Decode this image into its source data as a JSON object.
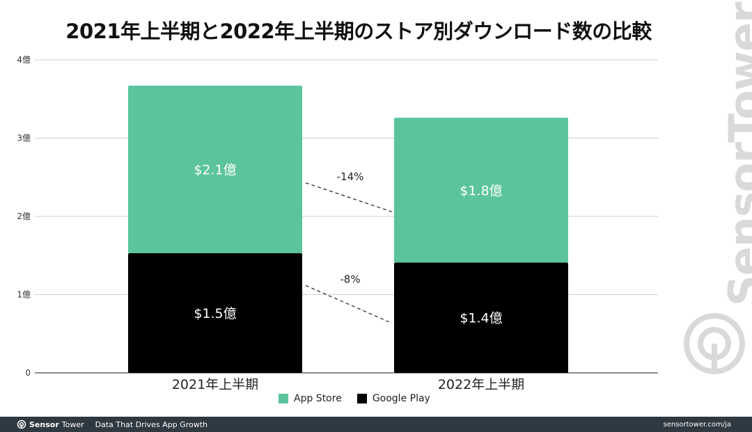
{
  "title": "2021年上半期と2022年上半期のストア別ダウンロード数の比較",
  "chart_data": {
    "type": "bar",
    "stacked": true,
    "title": "2021年上半期と2022年上半期のストア別ダウンロード数の比較",
    "categories": [
      "2021年上半期",
      "2022年上半期"
    ],
    "series": [
      {
        "name": "Google Play",
        "values": [
          1.53,
          1.41
        ],
        "labels": [
          "$1.5億",
          "$1.4億"
        ],
        "color": "#000000"
      },
      {
        "name": "App Store",
        "values": [
          2.14,
          1.85
        ],
        "labels": [
          "$2.1億",
          "$1.8億"
        ],
        "color": "#5bc49c"
      }
    ],
    "ylim": [
      0,
      4
    ],
    "yticks": [
      {
        "value": 0,
        "label": "0"
      },
      {
        "value": 1,
        "label": "1億"
      },
      {
        "value": 2,
        "label": "2億"
      },
      {
        "value": 3,
        "label": "3億"
      },
      {
        "value": 4,
        "label": "4億"
      }
    ],
    "annotations": [
      {
        "text": "-14%",
        "series": "App Store"
      },
      {
        "text": "-8%",
        "series": "Google Play"
      }
    ],
    "legend": [
      "App Store",
      "Google Play"
    ],
    "legend_position": "bottom",
    "grid": true
  },
  "legend": {
    "app_store": {
      "label": "App Store",
      "color": "#5bc49c"
    },
    "google_play": {
      "label": "Google Play",
      "color": "#000000"
    }
  },
  "watermark": {
    "text": "SensorTower",
    "icon": "sensor-tower-logo-icon"
  },
  "footer": {
    "brand_sensor": "Sensor",
    "brand_tower": "Tower",
    "tagline": "Data That Drives App Growth",
    "url": "sensortower.com/ja"
  }
}
